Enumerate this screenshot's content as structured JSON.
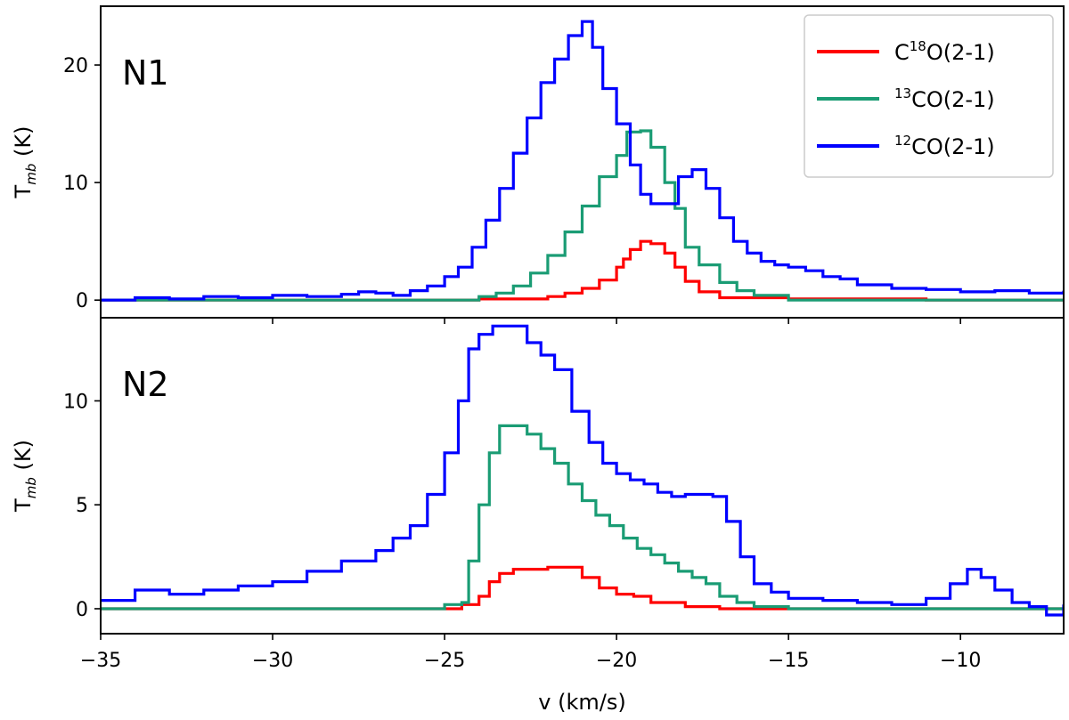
{
  "chart_data": [
    {
      "type": "line",
      "panel_label": "N1",
      "ylabel": "T",
      "ylabel_sub": "mb",
      "ylabel_unit": " (K)",
      "xlim": [
        -35,
        -7
      ],
      "ylim": [
        -1.5,
        25
      ],
      "yticks": [
        0,
        10,
        20
      ],
      "xticks": [
        -35,
        -30,
        -25,
        -20,
        -15,
        -10
      ],
      "grid": false,
      "legend_position": "top-right",
      "series": [
        {
          "name": "C18O(2-1)",
          "color": "#ff0000",
          "x": [
            -35,
            -25,
            -24,
            -23,
            -22,
            -21.5,
            -21,
            -20.5,
            -20,
            -19.8,
            -19.6,
            -19.3,
            -19,
            -18.6,
            -18.3,
            -18,
            -17.6,
            -17,
            -15,
            -11,
            -7
          ],
          "y": [
            0,
            0,
            0.1,
            0.1,
            0.3,
            0.6,
            1.0,
            1.7,
            2.8,
            3.5,
            4.3,
            5.0,
            4.8,
            4.0,
            2.8,
            1.6,
            0.7,
            0.2,
            0.1,
            0,
            0
          ]
        },
        {
          "name": "13CO(2-1)",
          "color": "#1a9c74",
          "x": [
            -35,
            -25,
            -24,
            -23.5,
            -23,
            -22.5,
            -22,
            -21.5,
            -21,
            -20.5,
            -20,
            -19.7,
            -19.3,
            -19,
            -18.6,
            -18.3,
            -18,
            -17.6,
            -17,
            -16.5,
            -16,
            -15,
            -11,
            -7
          ],
          "y": [
            0,
            0,
            0.3,
            0.6,
            1.2,
            2.3,
            3.8,
            5.8,
            8.0,
            10.5,
            12.3,
            14.3,
            14.4,
            13.0,
            10.0,
            7.8,
            4.5,
            3.0,
            1.5,
            0.8,
            0.4,
            0,
            0,
            0
          ]
        },
        {
          "name": "12CO(2-1)",
          "color": "#0000ff",
          "x": [
            -35,
            -34,
            -33,
            -32,
            -31,
            -30,
            -29,
            -28,
            -27.5,
            -27,
            -26.5,
            -26,
            -25.5,
            -25,
            -24.6,
            -24.2,
            -23.8,
            -23.4,
            -23,
            -22.6,
            -22.2,
            -21.8,
            -21.4,
            -21,
            -20.7,
            -20.4,
            -20,
            -19.6,
            -19.3,
            -19,
            -18.6,
            -18.2,
            -17.8,
            -17.4,
            -17,
            -16.6,
            -16.2,
            -15.8,
            -15.4,
            -15,
            -14.5,
            -14,
            -13.5,
            -13,
            -12,
            -11,
            -10,
            -9,
            -8,
            -7
          ],
          "y": [
            0,
            0.2,
            0.1,
            0.3,
            0.2,
            0.4,
            0.3,
            0.5,
            0.7,
            0.6,
            0.4,
            0.8,
            1.2,
            2.0,
            2.8,
            4.5,
            6.8,
            9.5,
            12.5,
            15.5,
            18.5,
            20.5,
            22.5,
            23.7,
            21.5,
            18.0,
            15.0,
            11.5,
            9.0,
            8.2,
            8.2,
            10.5,
            11.1,
            9.5,
            7.0,
            5.0,
            4.0,
            3.3,
            3.0,
            2.8,
            2.5,
            2.0,
            1.8,
            1.3,
            1.0,
            0.9,
            0.7,
            0.8,
            0.6,
            0.8
          ]
        }
      ]
    },
    {
      "type": "line",
      "panel_label": "N2",
      "ylabel": "T",
      "ylabel_sub": "mb",
      "ylabel_unit": " (K)",
      "xlabel": "v (km/s)",
      "xlim": [
        -35,
        -7
      ],
      "ylim": [
        -1.2,
        14
      ],
      "yticks": [
        0,
        5,
        10
      ],
      "xticks": [
        -35,
        -30,
        -25,
        -20,
        -15,
        -10
      ],
      "xtick_labels": [
        "−35",
        "−30",
        "−25",
        "−20",
        "−15",
        "−10"
      ],
      "grid": false,
      "series": [
        {
          "name": "C18O(2-1)",
          "color": "#ff0000",
          "x": [
            -35,
            -25,
            -24.5,
            -24,
            -23.7,
            -23.4,
            -23,
            -22.5,
            -22,
            -21.5,
            -21,
            -20.5,
            -20,
            -19.5,
            -19,
            -18,
            -17,
            -15,
            -12,
            -9,
            -7
          ],
          "y": [
            0,
            0,
            0.2,
            0.6,
            1.3,
            1.7,
            1.9,
            1.9,
            2.0,
            2.0,
            1.5,
            1.0,
            0.7,
            0.6,
            0.3,
            0.1,
            0,
            0,
            0,
            0,
            0
          ]
        },
        {
          "name": "13CO(2-1)",
          "color": "#1a9c74",
          "x": [
            -35,
            -25,
            -24.5,
            -24.3,
            -24,
            -23.7,
            -23.4,
            -23,
            -22.6,
            -22.2,
            -21.8,
            -21.4,
            -21,
            -20.6,
            -20.2,
            -19.8,
            -19.4,
            -19,
            -18.6,
            -18.2,
            -17.8,
            -17.4,
            -17,
            -16.5,
            -16,
            -15,
            -12,
            -9,
            -7
          ],
          "y": [
            0,
            0.2,
            0.3,
            2.3,
            5.0,
            7.5,
            8.8,
            8.8,
            8.4,
            7.7,
            7.0,
            6.0,
            5.2,
            4.5,
            4.0,
            3.4,
            2.9,
            2.6,
            2.2,
            1.8,
            1.5,
            1.2,
            0.6,
            0.3,
            0.1,
            0,
            0,
            0,
            0
          ]
        },
        {
          "name": "12CO(2-1)",
          "color": "#0000ff",
          "x": [
            -35,
            -34,
            -33,
            -32,
            -31,
            -30,
            -29,
            -28,
            -27,
            -26.5,
            -26,
            -25.5,
            -25,
            -24.6,
            -24.3,
            -24,
            -23.6,
            -23,
            -22.6,
            -22.2,
            -21.8,
            -21.3,
            -20.8,
            -20.4,
            -20,
            -19.6,
            -19.2,
            -18.8,
            -18.4,
            -18,
            -17.6,
            -17.2,
            -16.8,
            -16.4,
            -16,
            -15.5,
            -15,
            -14,
            -13,
            -12,
            -11,
            -10.3,
            -9.8,
            -9.4,
            -9,
            -8.5,
            -8,
            -7.5,
            -7
          ],
          "y": [
            0.4,
            0.9,
            0.7,
            0.9,
            1.1,
            1.3,
            1.8,
            2.3,
            2.8,
            3.4,
            4.0,
            5.5,
            7.5,
            10.0,
            12.5,
            13.2,
            13.6,
            13.6,
            12.8,
            12.2,
            11.5,
            9.5,
            8.0,
            7.0,
            6.5,
            6.2,
            6.0,
            5.6,
            5.4,
            5.5,
            5.5,
            5.4,
            4.2,
            2.5,
            1.2,
            0.8,
            0.5,
            0.4,
            0.3,
            0.2,
            0.5,
            1.2,
            1.9,
            1.5,
            0.9,
            0.3,
            0.1,
            -0.3,
            0.2
          ]
        }
      ]
    }
  ],
  "legend": {
    "entries": [
      {
        "pre": "C",
        "sup": "18",
        "post": "O(2-1)",
        "color": "#ff0000"
      },
      {
        "pre": "",
        "sup": "13",
        "post": "CO(2-1)",
        "color": "#1a9c74"
      },
      {
        "pre": "",
        "sup": "12",
        "post": "CO(2-1)",
        "color": "#0000ff"
      }
    ]
  }
}
